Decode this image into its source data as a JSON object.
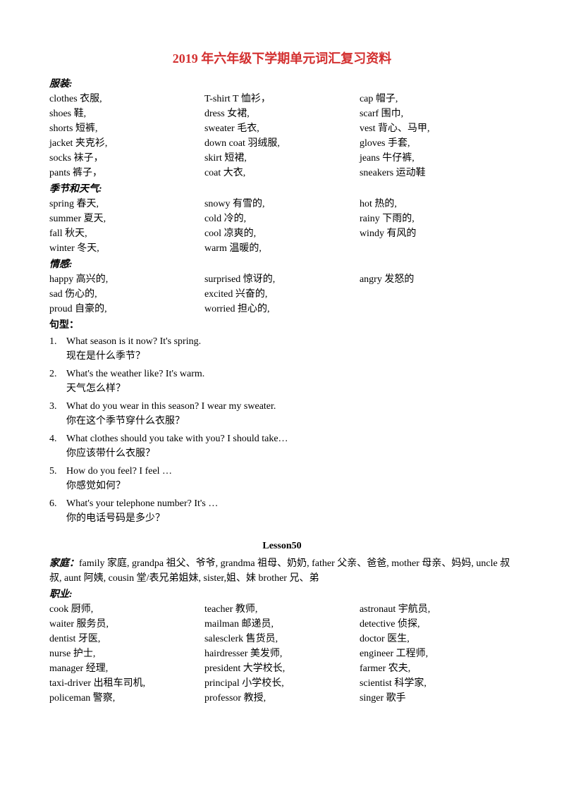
{
  "title": "2019 年六年级下学期单元词汇复习资料",
  "clothing": {
    "label": "服装:",
    "items": [
      "clothes 衣服,",
      "T-shirt T 恤衫，",
      "cap 帽子,",
      "shoes 鞋,",
      "dress 女裙,",
      "scarf 围巾,",
      "shorts  短裤,",
      "sweater 毛衣,",
      "vest 背心、马甲,",
      "jacket  夹克衫,",
      "down coat 羽绒服,",
      "gloves 手套,",
      "socks 袜子，",
      "skirt 短裙,",
      "jeans 牛仔裤,",
      "pants 裤子，",
      "coat 大衣,",
      "sneakers 运动鞋"
    ]
  },
  "season": {
    "label": "季节和天气:",
    "items": [
      "spring  春天,",
      "snowy  有雪的,",
      "hot 热的,",
      "summer 夏天,",
      "cold 冷的,",
      "rainy 下雨的,",
      "fall 秋天,",
      "cool 凉爽的,",
      "windy 有风的",
      "winter 冬天,",
      "warm 温暖的,",
      ""
    ]
  },
  "emotion": {
    "label": "情感:",
    "items": [
      "happy 高兴的,",
      "surprised 惊讶的,",
      "angry 发怒的",
      "sad 伤心的,",
      "excited 兴奋的,",
      "",
      "proud 自豪的,",
      "worried 担心的,",
      ""
    ]
  },
  "sentences": {
    "label": "句型：",
    "items": [
      {
        "n": "1.",
        "en": "What season is it now?    It's spring.",
        "zh": "现在是什么季节？"
      },
      {
        "n": "2.",
        "en": "What's the weather like? It's warm.",
        "zh": "天气怎么样？"
      },
      {
        "n": "3.",
        "en": "What do you wear in this season? I wear my sweater.",
        "zh": "你在这个季节穿什么衣服？"
      },
      {
        "n": "4.",
        "en": "What clothes should you take with you?    I should take…",
        "zh": "你应该带什么衣服？"
      },
      {
        "n": "5.",
        "en": "How do you feel? I feel …",
        "zh": "你感觉如何？"
      },
      {
        "n": "6.",
        "en": "What's your telephone number? It's …",
        "zh": "你的电话号码是多少？"
      }
    ]
  },
  "lesson": "Lesson50",
  "family": {
    "label": "家庭：",
    "text": "family 家庭, grandpa 祖父、爷爷, grandma 祖母、奶奶, father 父亲、爸爸, mother 母亲、妈妈, uncle 叔叔, aunt 阿姨, cousin 堂/表兄弟姐妹, sister,姐、妹  brother 兄、弟"
  },
  "job": {
    "label": "职业:",
    "items": [
      "cook 厨师,",
      "teacher 教师,",
      "astronaut 宇航员,",
      "waiter 服务员,",
      "mailman 邮递员,",
      "detective 侦探,",
      "dentist 牙医,",
      "salesclerk 售货员,",
      "doctor 医生,",
      "nurse 护士,",
      "hairdresser 美发师,",
      "engineer 工程师,",
      "manager 经理,",
      "president 大学校长,",
      "farmer 农夫,",
      "taxi-driver 出租车司机,",
      "principal 小学校长,",
      "scientist 科学家,",
      "policeman 警察,",
      "professor 教授,",
      "singer 歌手"
    ]
  }
}
